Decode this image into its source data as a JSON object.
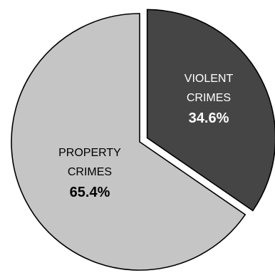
{
  "chart_data": {
    "type": "pie",
    "slices": [
      {
        "name_lines": [
          "VIOLENT",
          "CRIMES"
        ],
        "value": 34.6,
        "value_label": "34.6%",
        "color": "#454545",
        "exploded": true
      },
      {
        "name_lines": [
          "PROPERTY",
          "CRIMES"
        ],
        "value": 65.4,
        "value_label": "65.4%",
        "color": "#c5c5c5",
        "exploded": false
      }
    ]
  }
}
